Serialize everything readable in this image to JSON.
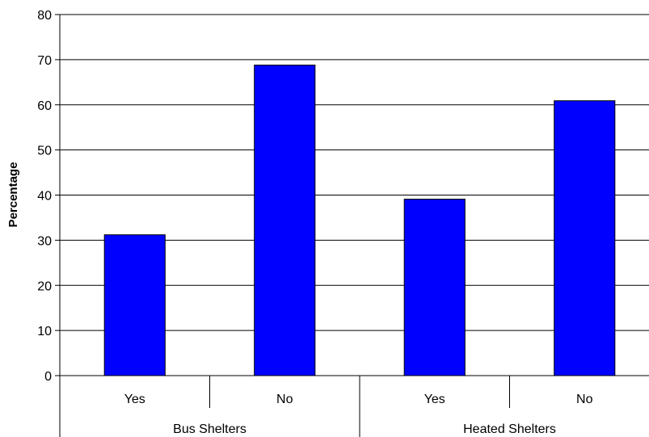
{
  "chart_data": {
    "type": "bar",
    "title": "",
    "xlabel": "",
    "ylabel": "Percentage",
    "ylim": [
      0,
      80
    ],
    "ytick_step": 10,
    "grid": true,
    "legend": "none",
    "groups": [
      {
        "label": "Bus Shelters",
        "categories": [
          "Yes",
          "No"
        ]
      },
      {
        "label": "Heated Shelters",
        "categories": [
          "Yes",
          "No"
        ]
      }
    ],
    "categories": [
      "Yes",
      "No",
      "Yes",
      "No"
    ],
    "values": [
      31.2,
      68.8,
      39.1,
      60.9
    ],
    "bar_color": "#0000ff",
    "bar_stroke": "#000000"
  }
}
